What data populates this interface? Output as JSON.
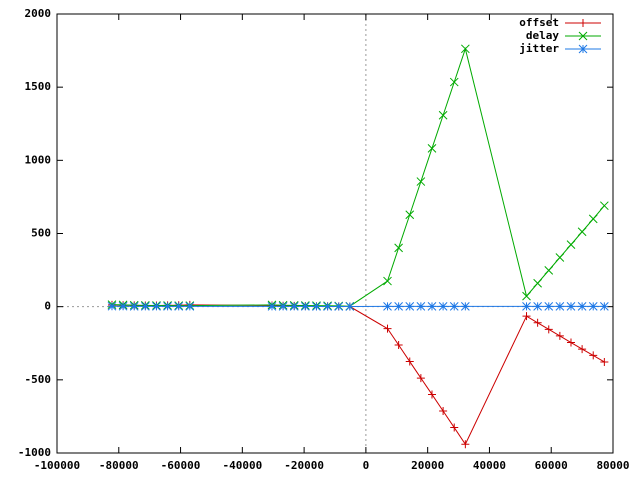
{
  "chart_data": {
    "type": "line",
    "x": [
      -82200,
      -78600,
      -75000,
      -71400,
      -67800,
      -64200,
      -60600,
      -57000,
      -30400,
      -26800,
      -23200,
      -19600,
      -16000,
      -12400,
      -8800,
      -5200,
      7000,
      10600,
      14200,
      17800,
      21400,
      25000,
      28600,
      32200,
      52000,
      55600,
      59200,
      62800,
      66400,
      70000,
      73600,
      77200
    ],
    "series": [
      {
        "name": "offset",
        "color": "#cc0000",
        "marker": "plus",
        "values": [
          12,
          10,
          9,
          8,
          8,
          9,
          10,
          12,
          8,
          6,
          5,
          4,
          3,
          3,
          2,
          1,
          -150,
          -262,
          -375,
          -488,
          -600,
          -713,
          -826,
          -940,
          -65,
          -110,
          -155,
          -200,
          -245,
          -290,
          -333,
          -378
        ]
      },
      {
        "name": "delay",
        "color": "#00aa00",
        "marker": "cross",
        "values": [
          14,
          12,
          10,
          9,
          8,
          8,
          7,
          7,
          12,
          10,
          9,
          8,
          7,
          6,
          5,
          3,
          175,
          402,
          628,
          855,
          1082,
          1308,
          1535,
          1762,
          72,
          160,
          248,
          336,
          424,
          512,
          600,
          690
        ]
      },
      {
        "name": "jitter",
        "color": "#1e78e6",
        "marker": "star",
        "values": [
          3,
          3,
          2,
          2,
          2,
          2,
          2,
          2,
          2,
          2,
          2,
          2,
          1,
          1,
          1,
          1,
          2,
          2,
          2,
          2,
          2,
          2,
          2,
          2,
          2,
          2,
          2,
          2,
          2,
          2,
          2,
          2
        ]
      }
    ],
    "xlim": [
      -100000,
      80000
    ],
    "xticks": [
      -100000,
      -80000,
      -60000,
      -40000,
      -20000,
      0,
      20000,
      40000,
      60000,
      80000
    ],
    "ylim": [
      -1000,
      2000
    ],
    "yticks": [
      -1000,
      -500,
      0,
      500,
      1000,
      1500,
      2000
    ],
    "zeroaxis": true,
    "legend": "top-right"
  }
}
